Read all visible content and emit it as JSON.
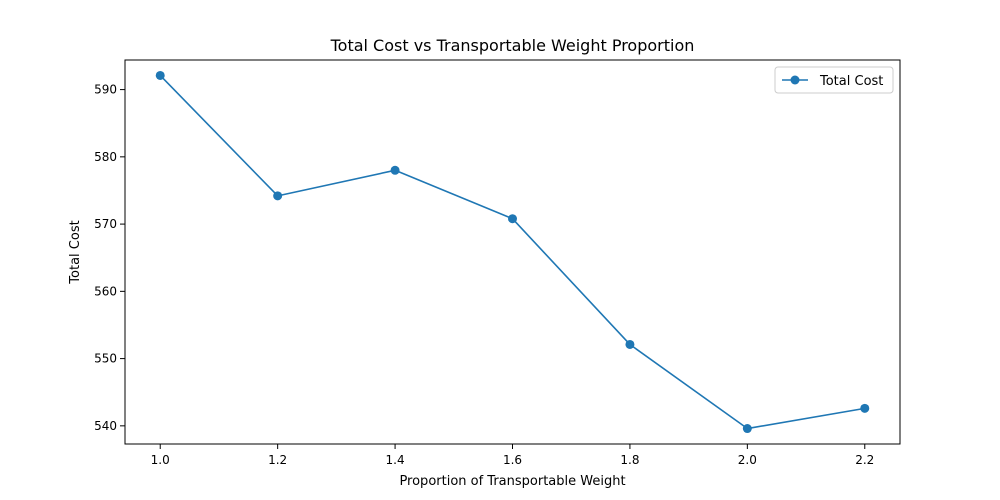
{
  "chart_data": {
    "type": "line",
    "title": "Total Cost vs Transportable Weight Proportion",
    "xlabel": "Proportion of Transportable Weight",
    "ylabel": "Total Cost",
    "x": [
      1.0,
      1.2,
      1.4,
      1.6,
      1.8,
      2.0,
      2.2
    ],
    "xlim": [
      0.94,
      2.26
    ],
    "ylim": [
      537.3,
      594.4
    ],
    "xticks": [
      "1.0",
      "1.2",
      "1.4",
      "1.6",
      "1.8",
      "2.0",
      "2.2"
    ],
    "yticks": [
      "540",
      "550",
      "560",
      "570",
      "580",
      "590"
    ],
    "grid": false,
    "legend_position": "top-right",
    "series": [
      {
        "name": "Total Cost",
        "color": "#1f77b4",
        "marker": "circle",
        "values": [
          592.1,
          574.2,
          578.0,
          570.8,
          552.1,
          539.6,
          542.6
        ]
      }
    ]
  }
}
